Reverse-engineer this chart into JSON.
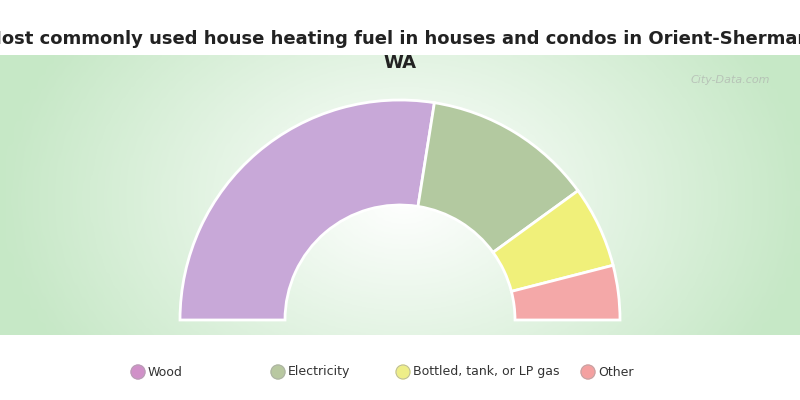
{
  "title": "Most commonly used house heating fuel in houses and condos in Orient-Sherman,\nWA",
  "categories": [
    "Wood",
    "Electricity",
    "Bottled, tank, or LP gas",
    "Other"
  ],
  "values": [
    55,
    25,
    12,
    8
  ],
  "colors": [
    "#c8a8d8",
    "#b3c9a0",
    "#f0f07a",
    "#f4a8a8"
  ],
  "legend_dot_colors": [
    "#d090c8",
    "#b8c8a0",
    "#eeee88",
    "#f4a0a0"
  ],
  "bg_color": "#ffffff",
  "chart_bg_gradient_center": "#ffffff",
  "chart_bg_gradient_edge": "#c8e8c0",
  "title_color": "#222222",
  "watermark": "City-Data.com",
  "legend_label_color": "#333333"
}
